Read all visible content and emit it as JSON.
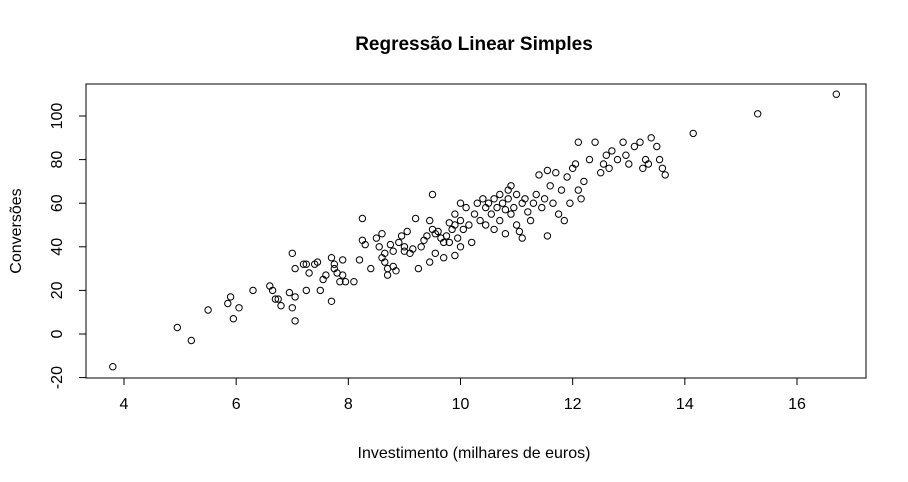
{
  "chart_data": {
    "type": "scatter",
    "title": "Regressão Linear Simples",
    "xlabel": "Investimento (milhares de euros)",
    "ylabel": "Conversões",
    "xlim": [
      3.5,
      17.0
    ],
    "ylim": [
      -20,
      115
    ],
    "xticks": [
      4,
      6,
      8,
      10,
      12,
      14,
      16
    ],
    "yticks": [
      -20,
      0,
      20,
      40,
      60,
      80,
      100
    ],
    "grid": false,
    "legend": "none",
    "point_color": "#000000",
    "points": [
      [
        3.8,
        -15
      ],
      [
        4.95,
        3
      ],
      [
        5.2,
        -3
      ],
      [
        5.5,
        11
      ],
      [
        5.85,
        14
      ],
      [
        5.9,
        17
      ],
      [
        5.95,
        7
      ],
      [
        6.05,
        12
      ],
      [
        6.3,
        20
      ],
      [
        6.6,
        22
      ],
      [
        6.65,
        20
      ],
      [
        6.7,
        16
      ],
      [
        6.75,
        16
      ],
      [
        6.8,
        13
      ],
      [
        6.95,
        19
      ],
      [
        7.0,
        37
      ],
      [
        7.0,
        12
      ],
      [
        7.05,
        17
      ],
      [
        7.05,
        6
      ],
      [
        7.05,
        30
      ],
      [
        7.2,
        32
      ],
      [
        7.25,
        32
      ],
      [
        7.25,
        20
      ],
      [
        7.3,
        28
      ],
      [
        7.4,
        32
      ],
      [
        7.45,
        33
      ],
      [
        7.5,
        20
      ],
      [
        7.55,
        25
      ],
      [
        7.6,
        27
      ],
      [
        7.7,
        15
      ],
      [
        7.7,
        35
      ],
      [
        7.75,
        30
      ],
      [
        7.75,
        32
      ],
      [
        7.8,
        28
      ],
      [
        7.85,
        24
      ],
      [
        7.9,
        34
      ],
      [
        7.9,
        27
      ],
      [
        7.95,
        24
      ],
      [
        8.1,
        24
      ],
      [
        8.2,
        34
      ],
      [
        8.25,
        53
      ],
      [
        8.25,
        43
      ],
      [
        8.3,
        41
      ],
      [
        8.4,
        30
      ],
      [
        8.5,
        44
      ],
      [
        8.55,
        40
      ],
      [
        8.6,
        46
      ],
      [
        8.6,
        35
      ],
      [
        8.65,
        37
      ],
      [
        8.65,
        33
      ],
      [
        8.7,
        30
      ],
      [
        8.7,
        27
      ],
      [
        8.75,
        41
      ],
      [
        8.8,
        38
      ],
      [
        8.8,
        31
      ],
      [
        8.85,
        29
      ],
      [
        8.9,
        42
      ],
      [
        8.95,
        45
      ],
      [
        9.0,
        40
      ],
      [
        9.0,
        38
      ],
      [
        9.05,
        47
      ],
      [
        9.1,
        37
      ],
      [
        9.15,
        39
      ],
      [
        9.2,
        53
      ],
      [
        9.25,
        30
      ],
      [
        9.3,
        40
      ],
      [
        9.35,
        43
      ],
      [
        9.4,
        45
      ],
      [
        9.45,
        52
      ],
      [
        9.45,
        33
      ],
      [
        9.5,
        64
      ],
      [
        9.5,
        48
      ],
      [
        9.55,
        46
      ],
      [
        9.55,
        37
      ],
      [
        9.6,
        47
      ],
      [
        9.65,
        44
      ],
      [
        9.7,
        42
      ],
      [
        9.7,
        35
      ],
      [
        9.75,
        45
      ],
      [
        9.8,
        51
      ],
      [
        9.8,
        42
      ],
      [
        9.85,
        48
      ],
      [
        9.9,
        55
      ],
      [
        9.9,
        50
      ],
      [
        9.9,
        36
      ],
      [
        9.95,
        44
      ],
      [
        10.0,
        60
      ],
      [
        10.0,
        52
      ],
      [
        10.0,
        40
      ],
      [
        10.05,
        48
      ],
      [
        10.1,
        58
      ],
      [
        10.15,
        50
      ],
      [
        10.2,
        42
      ],
      [
        10.25,
        55
      ],
      [
        10.3,
        60
      ],
      [
        10.35,
        52
      ],
      [
        10.4,
        62
      ],
      [
        10.45,
        58
      ],
      [
        10.45,
        50
      ],
      [
        10.5,
        60
      ],
      [
        10.55,
        55
      ],
      [
        10.6,
        62
      ],
      [
        10.6,
        48
      ],
      [
        10.65,
        58
      ],
      [
        10.7,
        52
      ],
      [
        10.7,
        64
      ],
      [
        10.75,
        60
      ],
      [
        10.8,
        57
      ],
      [
        10.8,
        46
      ],
      [
        10.85,
        62
      ],
      [
        10.85,
        66
      ],
      [
        10.9,
        68
      ],
      [
        10.9,
        55
      ],
      [
        10.95,
        58
      ],
      [
        11.0,
        64
      ],
      [
        11.0,
        50
      ],
      [
        11.05,
        47
      ],
      [
        11.1,
        60
      ],
      [
        11.1,
        44
      ],
      [
        11.15,
        62
      ],
      [
        11.2,
        56
      ],
      [
        11.25,
        52
      ],
      [
        11.3,
        60
      ],
      [
        11.35,
        64
      ],
      [
        11.4,
        73
      ],
      [
        11.45,
        58
      ],
      [
        11.5,
        62
      ],
      [
        11.55,
        45
      ],
      [
        11.55,
        75
      ],
      [
        11.6,
        68
      ],
      [
        11.65,
        60
      ],
      [
        11.7,
        74
      ],
      [
        11.75,
        55
      ],
      [
        11.8,
        66
      ],
      [
        11.85,
        52
      ],
      [
        11.9,
        72
      ],
      [
        11.95,
        60
      ],
      [
        12.0,
        76
      ],
      [
        12.05,
        78
      ],
      [
        12.1,
        66
      ],
      [
        12.1,
        88
      ],
      [
        12.15,
        62
      ],
      [
        12.2,
        70
      ],
      [
        12.3,
        80
      ],
      [
        12.4,
        88
      ],
      [
        12.5,
        74
      ],
      [
        12.55,
        78
      ],
      [
        12.6,
        82
      ],
      [
        12.65,
        76
      ],
      [
        12.7,
        84
      ],
      [
        12.8,
        80
      ],
      [
        12.9,
        88
      ],
      [
        12.95,
        82
      ],
      [
        13.0,
        78
      ],
      [
        13.1,
        86
      ],
      [
        13.2,
        88
      ],
      [
        13.25,
        76
      ],
      [
        13.3,
        80
      ],
      [
        13.35,
        78
      ],
      [
        13.4,
        90
      ],
      [
        13.5,
        86
      ],
      [
        13.55,
        80
      ],
      [
        13.6,
        76
      ],
      [
        13.65,
        73
      ],
      [
        14.15,
        92
      ],
      [
        15.3,
        101
      ],
      [
        16.7,
        110
      ]
    ]
  }
}
